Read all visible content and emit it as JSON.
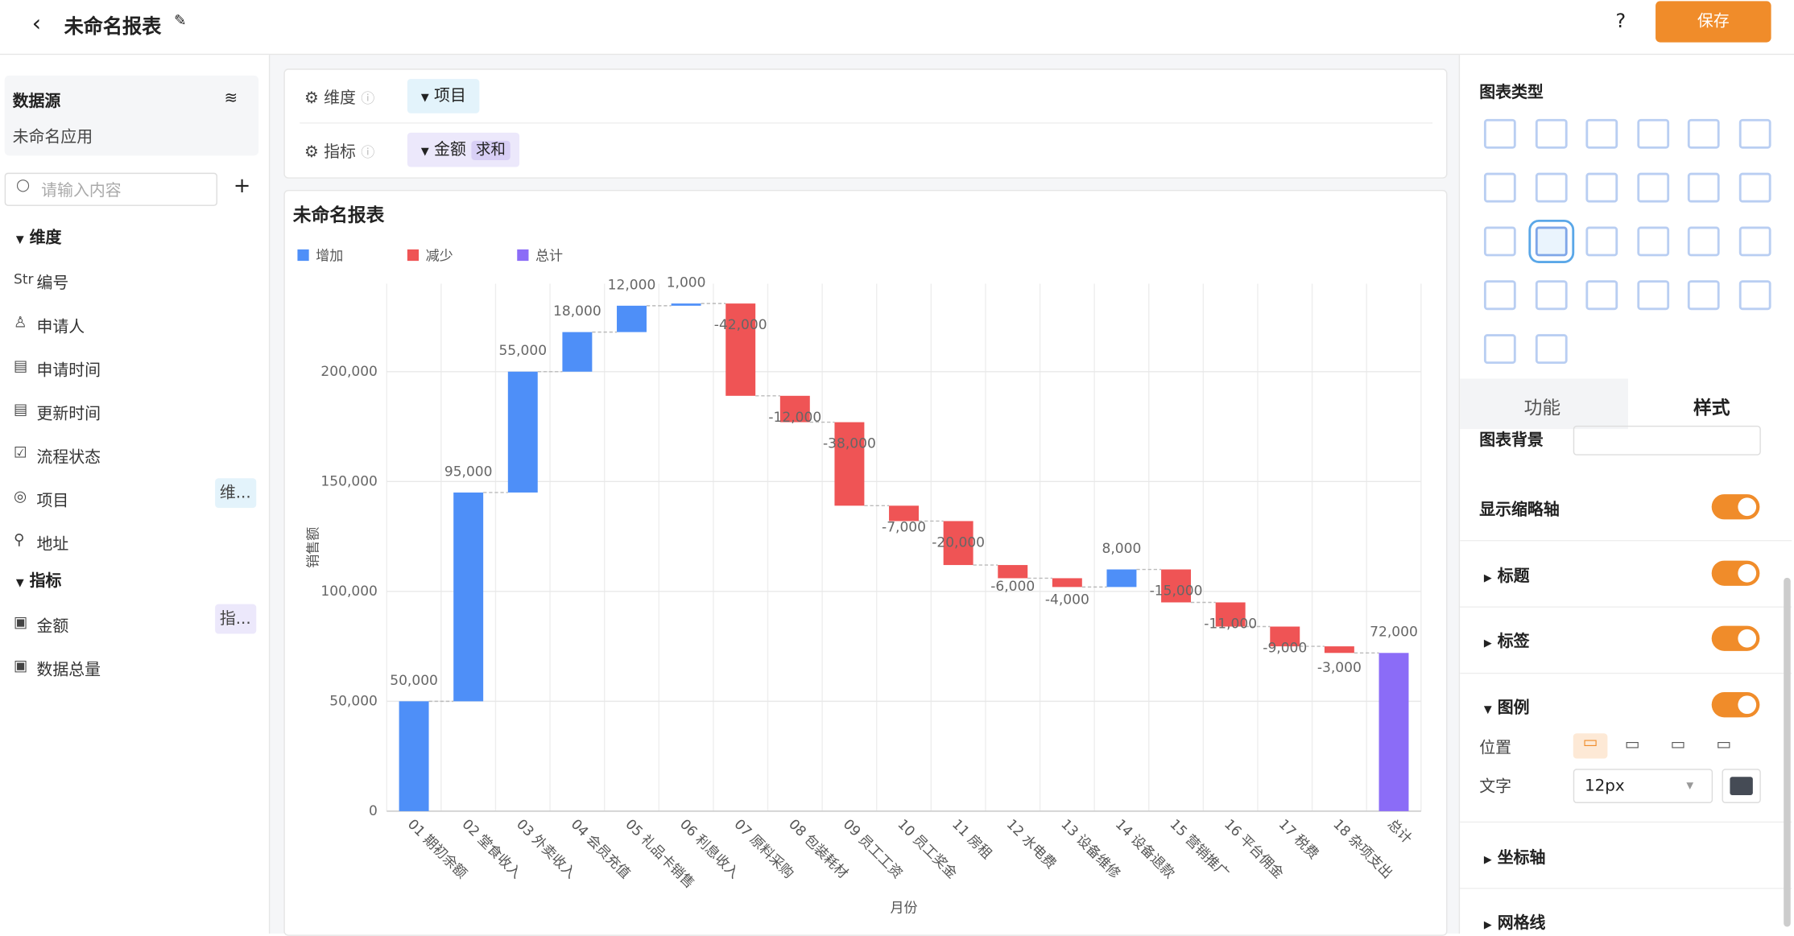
{
  "header": {
    "title": "未命名报表",
    "help": "?",
    "save": "保存"
  },
  "sidebar": {
    "source_title": "数据源",
    "source_name": "未命名应用",
    "search_placeholder": "请输入内容",
    "dimension_title": "维度",
    "dimension_fields": [
      {
        "prefix": "Str",
        "name": "编号"
      },
      {
        "name": "申请人"
      },
      {
        "name": "申请时间"
      },
      {
        "name": "更新时间"
      },
      {
        "name": "流程状态"
      },
      {
        "name": "项目",
        "tag": "维..."
      },
      {
        "name": "地址"
      }
    ],
    "metric_title": "指标",
    "metric_fields": [
      {
        "name": "金额",
        "tag": "指..."
      },
      {
        "name": "数据总量"
      }
    ]
  },
  "config": {
    "dimension_label": "维度",
    "dimension_value": "项目",
    "metric_label": "指标",
    "metric_value": "金额",
    "metric_agg": "求和"
  },
  "chart_data": {
    "type": "waterfall",
    "title": "未命名报表",
    "x_label": "月份",
    "y_label": "销售额",
    "legend": [
      {
        "name": "增加",
        "color": "#4e8ff8"
      },
      {
        "name": "减少",
        "color": "#ef5455"
      },
      {
        "name": "总计",
        "color": "#8b6cf7"
      }
    ],
    "categories": [
      "01 期初余额",
      "02 堂食收入",
      "03 外卖收入",
      "04 会员充值",
      "05 礼品卡销售",
      "06 利息收入",
      "07 原料采购",
      "08 包装耗材",
      "09 员工工资",
      "10 员工奖金",
      "11 房租",
      "12 水电费",
      "13 设备维修",
      "14 设备退款",
      "15 营销推广",
      "16 平台佣金",
      "17 税费",
      "18 杂项支出",
      "总计"
    ],
    "values": [
      50000,
      95000,
      55000,
      18000,
      12000,
      1000,
      -42000,
      -12000,
      -38000,
      -7000,
      -20000,
      -6000,
      -4000,
      8000,
      -15000,
      -11000,
      -9000,
      -3000,
      72000
    ],
    "value_labels": [
      "50,000",
      "95,000",
      "55,000",
      "18,000",
      "12,000",
      "1,000",
      "-42,000",
      "-12,000",
      "-38,000",
      "-7,000",
      "-20,000",
      "-6,000",
      "-4,000",
      "8,000",
      "-15,000",
      "-11,000",
      "-9,000",
      "-3,000",
      "72,000"
    ],
    "last_is_total": true,
    "ylim": [
      0,
      240000
    ],
    "yticks": [
      {
        "value": 0,
        "label": "0"
      },
      {
        "value": 50000,
        "label": "50,000"
      },
      {
        "value": 100000,
        "label": "100,000"
      },
      {
        "value": 150000,
        "label": "150,000"
      },
      {
        "value": 200000,
        "label": "200,000"
      }
    ],
    "grid": true
  },
  "panel": {
    "chart_types_title": "图表类型",
    "tabs": [
      "功能",
      "样式"
    ],
    "background": "图表背景",
    "thumb_axis": "显示缩略轴",
    "title": "标题",
    "label": "标签",
    "legend": "图例",
    "position": "位置",
    "text": "文字",
    "font_size": "12px",
    "axis": "坐标轴",
    "gridline": "网格线"
  }
}
